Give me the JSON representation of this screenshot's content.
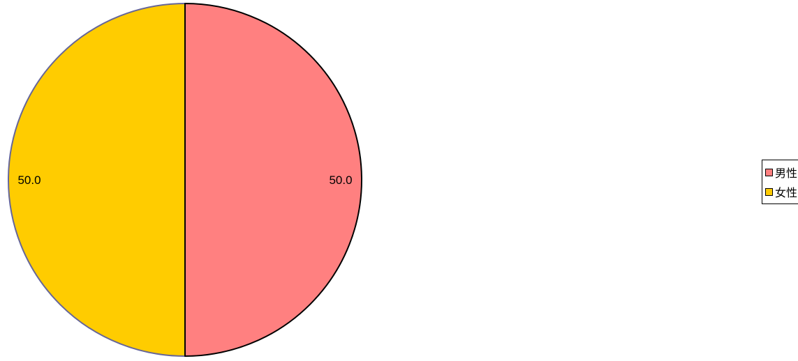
{
  "chart_data": {
    "type": "pie",
    "labels": [
      "男性",
      "女性"
    ],
    "values": [
      50.0,
      50.0
    ],
    "data_labels": [
      "50.0",
      "50.0"
    ],
    "colors": [
      "#ff8080",
      "#ffcc00"
    ],
    "outline_colors": [
      "#000000",
      "#666699"
    ],
    "legend_position": "right"
  }
}
